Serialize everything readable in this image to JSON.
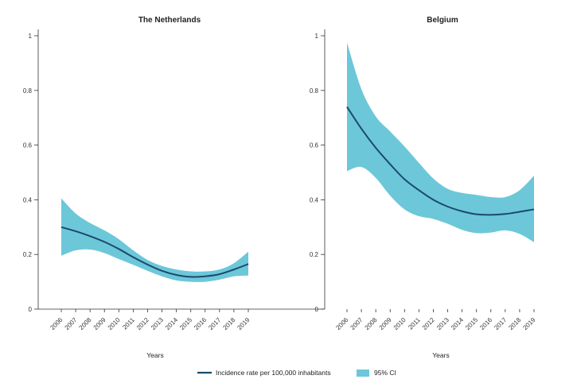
{
  "colors": {
    "band": "#6cc7d9",
    "line": "#1b4a6b",
    "axis": "#333333"
  },
  "legend": {
    "line_label": "Incidence rate per 100,000 inhabitants",
    "band_label": "95% CI"
  },
  "chart_data": [
    {
      "type": "line",
      "title": "The Netherlands",
      "xlabel": "Years",
      "ylabel": "",
      "ylim": [
        0,
        1
      ],
      "yticks": [
        0,
        0.2,
        0.4,
        0.6,
        0.8,
        1
      ],
      "ytick_labels": [
        "0",
        "0.2",
        "0.4",
        "0.6",
        "0.8",
        "1"
      ],
      "categories": [
        "2006",
        "2007",
        "2008",
        "2009",
        "2010",
        "2011",
        "2012",
        "2013",
        "2014",
        "2015",
        "2016",
        "2017",
        "2018",
        "2019"
      ],
      "series": [
        {
          "name": "Incidence rate per 100,000 inhabitants",
          "values": [
            0.3,
            0.285,
            0.267,
            0.246,
            0.22,
            0.19,
            0.163,
            0.14,
            0.125,
            0.118,
            0.12,
            0.128,
            0.145,
            0.165
          ]
        },
        {
          "name": "95% CI upper",
          "values": [
            0.405,
            0.35,
            0.315,
            0.288,
            0.256,
            0.215,
            0.18,
            0.158,
            0.145,
            0.138,
            0.138,
            0.145,
            0.168,
            0.21
          ]
        },
        {
          "name": "95% CI lower",
          "values": [
            0.195,
            0.215,
            0.218,
            0.205,
            0.183,
            0.162,
            0.14,
            0.12,
            0.105,
            0.1,
            0.1,
            0.108,
            0.12,
            0.123
          ]
        }
      ]
    },
    {
      "type": "line",
      "title": "Belgium",
      "xlabel": "Years",
      "ylabel": "",
      "ylim": [
        0,
        1
      ],
      "yticks": [
        0,
        0.2,
        0.4,
        0.6,
        0.8,
        1
      ],
      "ytick_labels": [
        "0",
        "0.2",
        "0.4",
        "0.6",
        "0.8",
        "1"
      ],
      "categories": [
        "2006",
        "2007",
        "2008",
        "2009",
        "2010",
        "2011",
        "2012",
        "2013",
        "2014",
        "2015",
        "2016",
        "2017",
        "2018",
        "2019"
      ],
      "series": [
        {
          "name": "Incidence rate per 100,000 inhabitants",
          "values": [
            0.74,
            0.66,
            0.59,
            0.53,
            0.475,
            0.435,
            0.4,
            0.375,
            0.358,
            0.347,
            0.345,
            0.348,
            0.356,
            0.365
          ]
        },
        {
          "name": "95% CI upper",
          "values": [
            0.975,
            0.805,
            0.705,
            0.65,
            0.595,
            0.535,
            0.478,
            0.44,
            0.425,
            0.418,
            0.41,
            0.41,
            0.435,
            0.488
          ]
        },
        {
          "name": "95% CI lower",
          "values": [
            0.505,
            0.52,
            0.48,
            0.415,
            0.365,
            0.34,
            0.33,
            0.312,
            0.29,
            0.278,
            0.28,
            0.288,
            0.275,
            0.245
          ]
        }
      ]
    }
  ]
}
